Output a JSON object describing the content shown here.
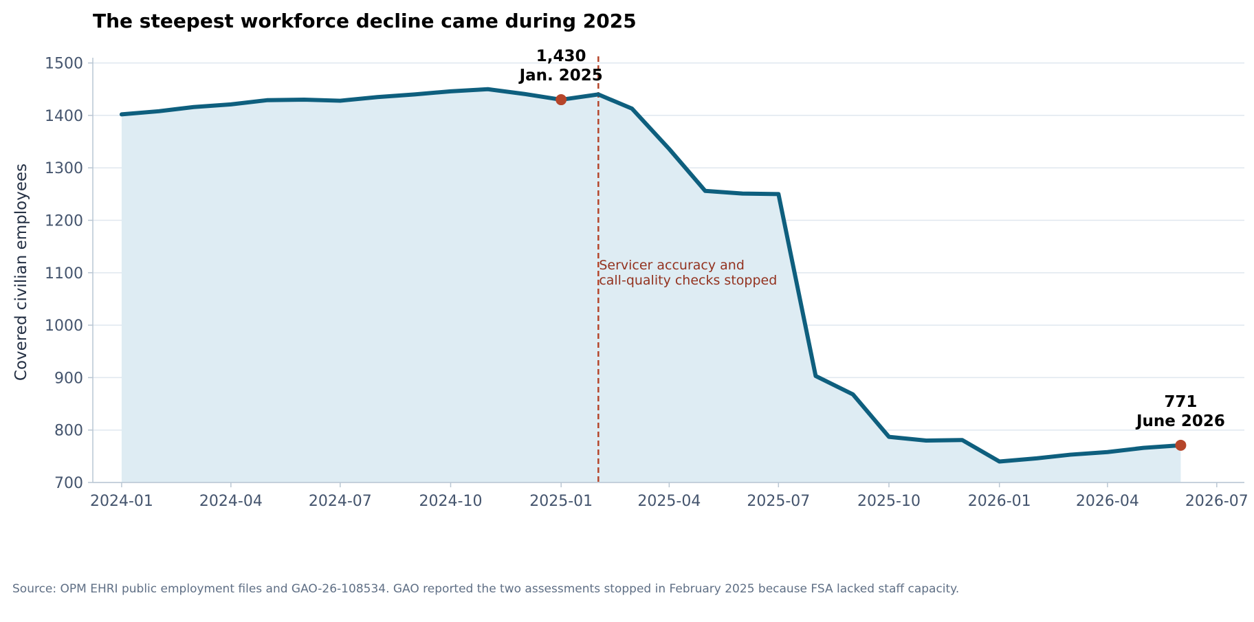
{
  "chart_data": {
    "type": "area",
    "title": "The steepest workforce decline came during 2025",
    "ylabel": "Covered civilian employees",
    "xlabel": "",
    "ylim": [
      700,
      1510
    ],
    "x_axis_type": "date",
    "xlim": [
      "2023-12-08",
      "2026-07-24"
    ],
    "grid": "horizontal",
    "legend": "none",
    "x_ticks": [
      {
        "date": "2024-01-01",
        "label": "2024-01"
      },
      {
        "date": "2024-04-01",
        "label": "2024-04"
      },
      {
        "date": "2024-07-01",
        "label": "2024-07"
      },
      {
        "date": "2024-10-01",
        "label": "2024-10"
      },
      {
        "date": "2025-01-01",
        "label": "2025-01"
      },
      {
        "date": "2025-04-01",
        "label": "2025-04"
      },
      {
        "date": "2025-07-01",
        "label": "2025-07"
      },
      {
        "date": "2025-10-01",
        "label": "2025-10"
      },
      {
        "date": "2026-01-01",
        "label": "2026-01"
      },
      {
        "date": "2026-04-01",
        "label": "2026-04"
      },
      {
        "date": "2026-07-01",
        "label": "2026-07"
      }
    ],
    "y_ticks": [
      700,
      800,
      900,
      1000,
      1100,
      1200,
      1300,
      1400,
      1500
    ],
    "series": [
      {
        "points": [
          {
            "date": "2024-01-01",
            "value": 1402
          },
          {
            "date": "2024-02-01",
            "value": 1408
          },
          {
            "date": "2024-03-01",
            "value": 1416
          },
          {
            "date": "2024-04-01",
            "value": 1421
          },
          {
            "date": "2024-05-01",
            "value": 1429
          },
          {
            "date": "2024-06-01",
            "value": 1430
          },
          {
            "date": "2024-07-01",
            "value": 1428
          },
          {
            "date": "2024-08-01",
            "value": 1435
          },
          {
            "date": "2024-09-01",
            "value": 1440
          },
          {
            "date": "2024-10-01",
            "value": 1446
          },
          {
            "date": "2024-11-01",
            "value": 1450
          },
          {
            "date": "2024-12-01",
            "value": 1441
          },
          {
            "date": "2025-01-01",
            "value": 1430
          },
          {
            "date": "2025-02-01",
            "value": 1440
          },
          {
            "date": "2025-03-01",
            "value": 1413
          },
          {
            "date": "2025-04-01",
            "value": 1336
          },
          {
            "date": "2025-05-01",
            "value": 1256
          },
          {
            "date": "2025-06-01",
            "value": 1251
          },
          {
            "date": "2025-07-01",
            "value": 1250
          },
          {
            "date": "2025-08-01",
            "value": 903
          },
          {
            "date": "2025-09-01",
            "value": 868
          },
          {
            "date": "2025-10-01",
            "value": 787
          },
          {
            "date": "2025-11-01",
            "value": 780
          },
          {
            "date": "2025-12-01",
            "value": 781
          },
          {
            "date": "2026-01-01",
            "value": 740
          },
          {
            "date": "2026-02-01",
            "value": 746
          },
          {
            "date": "2026-03-01",
            "value": 753
          },
          {
            "date": "2026-04-01",
            "value": 758
          },
          {
            "date": "2026-05-01",
            "value": 766
          },
          {
            "date": "2026-06-01",
            "value": 771
          }
        ]
      }
    ],
    "highlight_points": [
      {
        "date": "2025-01-01",
        "value": 1430,
        "value_label": "1,430",
        "date_label": "Jan. 2025"
      },
      {
        "date": "2026-06-01",
        "value": 771,
        "value_label": "771",
        "date_label": "June 2026"
      }
    ],
    "event_line": {
      "date": "2025-02-01",
      "label_line1": "Servicer accuracy and",
      "label_line2": "call-quality checks stopped"
    },
    "source": "Source: OPM EHRI public employment files and GAO-26-108534. GAO reported the two assessments stopped in February 2025 because FSA lacked staff capacity.",
    "colors": {
      "line": "#0e5f7e",
      "area_fill": "#deecf3",
      "marker": "#b5452a",
      "event_line": "#b5452a",
      "event_text": "#93321f",
      "grid": "#dfe7ef",
      "axis": "#b9c6d3",
      "tick_text": "#44546d",
      "label_text": "#243044",
      "title_text": "#000000",
      "source_text": "#5f6f85"
    }
  }
}
